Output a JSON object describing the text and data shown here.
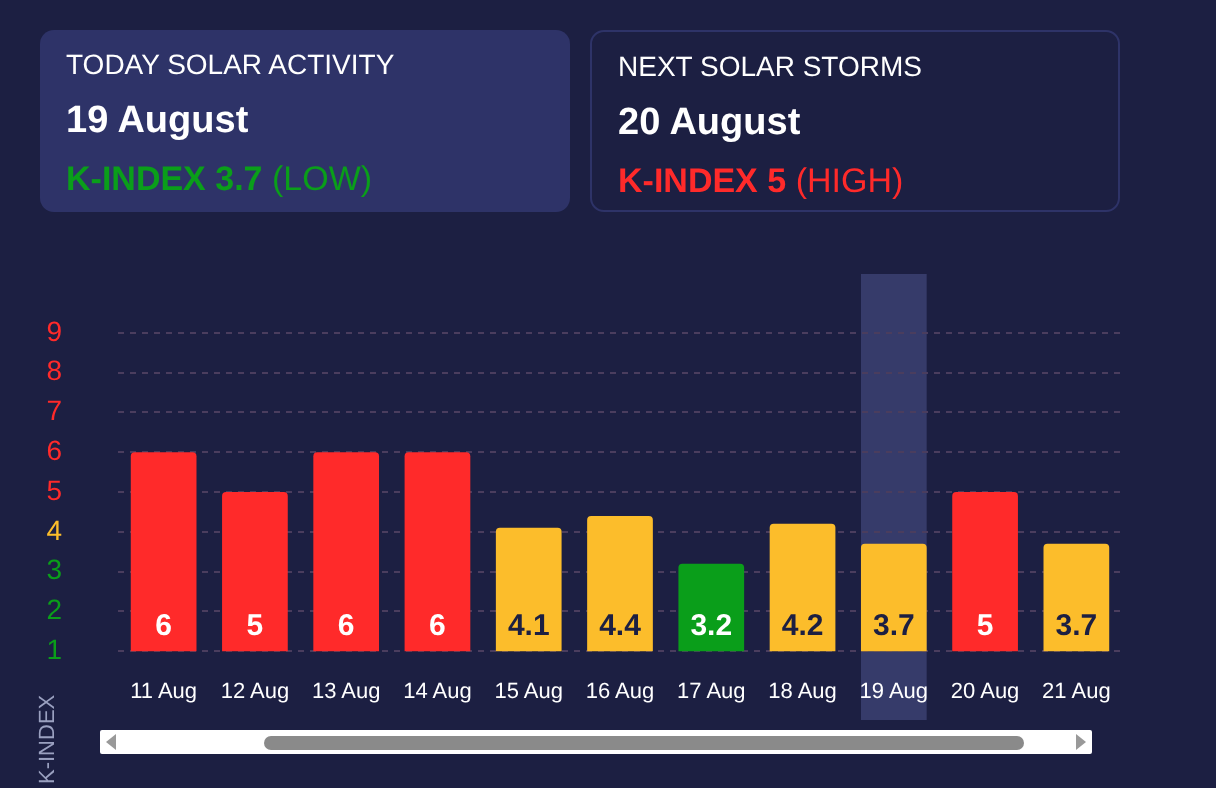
{
  "chart_data": [
    {
      "type": "other",
      "title": "TODAY SOLAR ACTIVITY",
      "subtitle": "19 August",
      "annotations": [
        "K-INDEX 3.7",
        "(LOW)"
      ],
      "color": "#0a9e1a"
    },
    {
      "type": "other",
      "title": "NEXT SOLAR STORMS",
      "subtitle": "20 August",
      "annotations": [
        "K-INDEX 5",
        "(HIGH)"
      ],
      "color": "#ff2a2a"
    },
    {
      "type": "bar",
      "ylabel": "K-INDEX",
      "categories": [
        "11 Aug",
        "12 Aug",
        "13 Aug",
        "14 Aug",
        "15 Aug",
        "16 Aug",
        "17 Aug",
        "18 Aug",
        "19 Aug",
        "20 Aug",
        "21 Aug"
      ],
      "values": [
        6,
        5,
        6,
        6,
        4.1,
        4.4,
        3.2,
        4.2,
        3.7,
        5,
        3.7
      ],
      "colors": [
        "#ff2a2a",
        "#ff2a2a",
        "#ff2a2a",
        "#ff2a2a",
        "#fcbd2b",
        "#fcbd2b",
        "#0a9e1a",
        "#fcbd2b",
        "#fcbd2b",
        "#ff2a2a",
        "#fcbd2b"
      ],
      "ylim": [
        1,
        9
      ],
      "yticks": [
        1,
        2,
        3,
        4,
        5,
        6,
        7,
        8,
        9
      ],
      "bands": [
        {
          "axis": "x",
          "from": "19 Aug",
          "to": "19 Aug",
          "color": "#363b6a"
        }
      ],
      "grid": "y",
      "legend": false,
      "data_labels": true
    }
  ]
}
